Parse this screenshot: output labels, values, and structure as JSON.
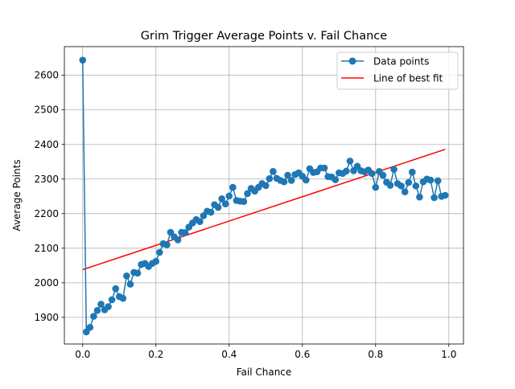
{
  "chart_data": {
    "type": "line",
    "title": "Grim Trigger Average Points v. Fail Chance",
    "xlabel": "Fail Chance",
    "ylabel": "Average Points",
    "xlim": [
      -0.05,
      1.04
    ],
    "ylim": [
      1823,
      2683
    ],
    "xticks": [
      0.0,
      0.2,
      0.4,
      0.6,
      0.8,
      1.0
    ],
    "xtick_labels": [
      "0.0",
      "0.2",
      "0.4",
      "0.6",
      "0.8",
      "1.0"
    ],
    "yticks": [
      1900,
      2000,
      2100,
      2200,
      2300,
      2400,
      2500,
      2600
    ],
    "ytick_labels": [
      "1900",
      "2000",
      "2100",
      "2200",
      "2300",
      "2400",
      "2500",
      "2600"
    ],
    "grid": true,
    "legend_position": "upper right",
    "series": [
      {
        "name": "Data points",
        "color": "#1f77b4",
        "marker": "circle",
        "x": [
          0.0,
          0.01,
          0.02,
          0.03,
          0.04,
          0.05,
          0.06,
          0.07,
          0.08,
          0.09,
          0.1,
          0.11,
          0.12,
          0.13,
          0.14,
          0.15,
          0.16,
          0.17,
          0.18,
          0.19,
          0.2,
          0.21,
          0.22,
          0.23,
          0.24,
          0.25,
          0.26,
          0.27,
          0.28,
          0.29,
          0.3,
          0.31,
          0.32,
          0.33,
          0.34,
          0.35,
          0.36,
          0.37,
          0.38,
          0.39,
          0.4,
          0.41,
          0.42,
          0.43,
          0.44,
          0.45,
          0.46,
          0.47,
          0.48,
          0.49,
          0.5,
          0.51,
          0.52,
          0.53,
          0.54,
          0.55,
          0.56,
          0.57,
          0.58,
          0.59,
          0.6,
          0.61,
          0.62,
          0.63,
          0.64,
          0.65,
          0.66,
          0.67,
          0.68,
          0.69,
          0.7,
          0.71,
          0.72,
          0.73,
          0.74,
          0.75,
          0.76,
          0.77,
          0.78,
          0.79,
          0.8,
          0.81,
          0.82,
          0.83,
          0.84,
          0.85,
          0.86,
          0.87,
          0.88,
          0.89,
          0.9,
          0.91,
          0.92,
          0.93,
          0.94,
          0.95,
          0.96,
          0.97,
          0.98,
          0.99
        ],
        "y": [
          2644,
          1858,
          1871,
          1903,
          1920,
          1938,
          1922,
          1931,
          1951,
          1983,
          1960,
          1955,
          2020,
          1996,
          2030,
          2028,
          2053,
          2056,
          2047,
          2056,
          2062,
          2088,
          2113,
          2110,
          2146,
          2133,
          2124,
          2146,
          2145,
          2161,
          2173,
          2183,
          2177,
          2194,
          2207,
          2204,
          2226,
          2218,
          2243,
          2228,
          2251,
          2276,
          2238,
          2236,
          2235,
          2258,
          2273,
          2265,
          2276,
          2287,
          2281,
          2301,
          2322,
          2302,
          2296,
          2292,
          2311,
          2296,
          2313,
          2318,
          2308,
          2297,
          2330,
          2319,
          2321,
          2332,
          2332,
          2307,
          2306,
          2298,
          2318,
          2316,
          2323,
          2352,
          2324,
          2337,
          2324,
          2321,
          2326,
          2316,
          2276,
          2322,
          2311,
          2291,
          2282,
          2328,
          2287,
          2280,
          2263,
          2290,
          2320,
          2280,
          2248,
          2292,
          2300,
          2297,
          2246,
          2295,
          2250,
          2253
        ]
      },
      {
        "name": "Line of best fit",
        "color": "#ff0000",
        "x": [
          0.0,
          0.99
        ],
        "y": [
          2038,
          2386
        ]
      }
    ]
  }
}
